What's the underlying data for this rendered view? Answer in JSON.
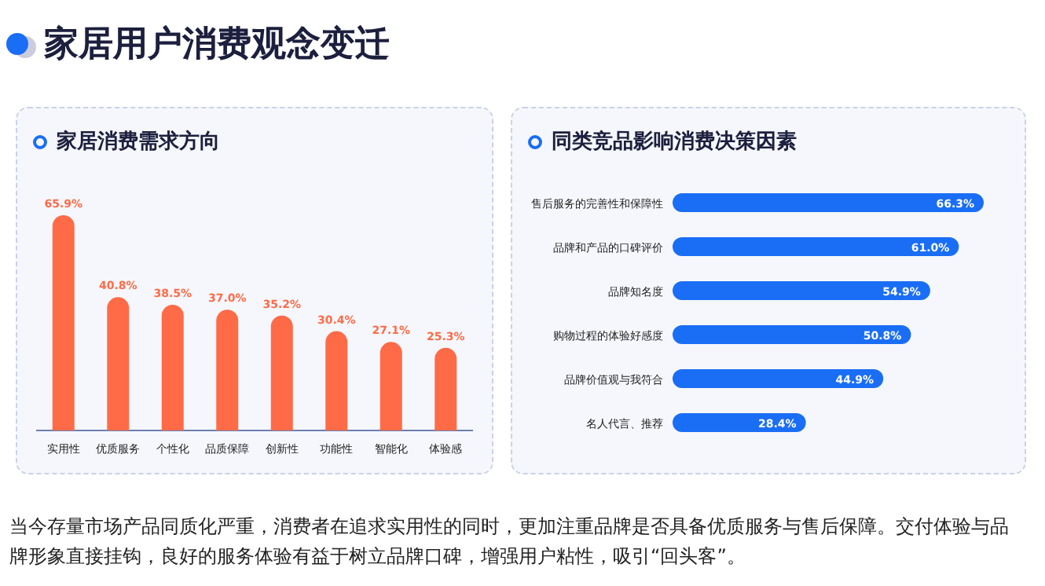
{
  "chart_data": [
    {
      "type": "other",
      "title": "家居用户消费观念变迁",
      "annotations": [
        "当今存量市场产品同质化严重，消费者在追求实用性的同时，更加注重品牌是否具备优质服务与售后保障。交付体验与品牌形象直接挂钩，良好的服务体验有益于树立品牌口碑，增强用户粘性，吸引“回头客”。"
      ]
    },
    {
      "type": "bar",
      "title": "家居消费需求方向",
      "categories": [
        "实用性",
        "优质服务",
        "个性化",
        "品质保障",
        "创新性",
        "功能性",
        "智能化",
        "体验感"
      ],
      "values": [
        65.9,
        40.8,
        38.5,
        37.0,
        35.2,
        30.4,
        27.1,
        25.3
      ],
      "value_labels": [
        "65.9%",
        "40.8%",
        "38.5%",
        "37.0%",
        "35.2%",
        "30.4%",
        "27.1%",
        "25.3%"
      ],
      "color": "#ff6b47"
    },
    {
      "type": "bar",
      "orientation": "horizontal",
      "title": "同类竞品影响消费决策因素",
      "categories": [
        "售后服务的完善性和保障性",
        "品牌和产品的口碑评价",
        "品牌知名度",
        "购物过程的体验好感度",
        "品牌价值观与我符合",
        "名人代言、推荐"
      ],
      "values": [
        66.3,
        61.0,
        54.9,
        50.8,
        44.9,
        28.4
      ],
      "value_labels": [
        "66.3%",
        "61.0%",
        "54.9%",
        "50.8%",
        "44.9%",
        "28.4%"
      ],
      "color": "#1a6ef5"
    }
  ]
}
